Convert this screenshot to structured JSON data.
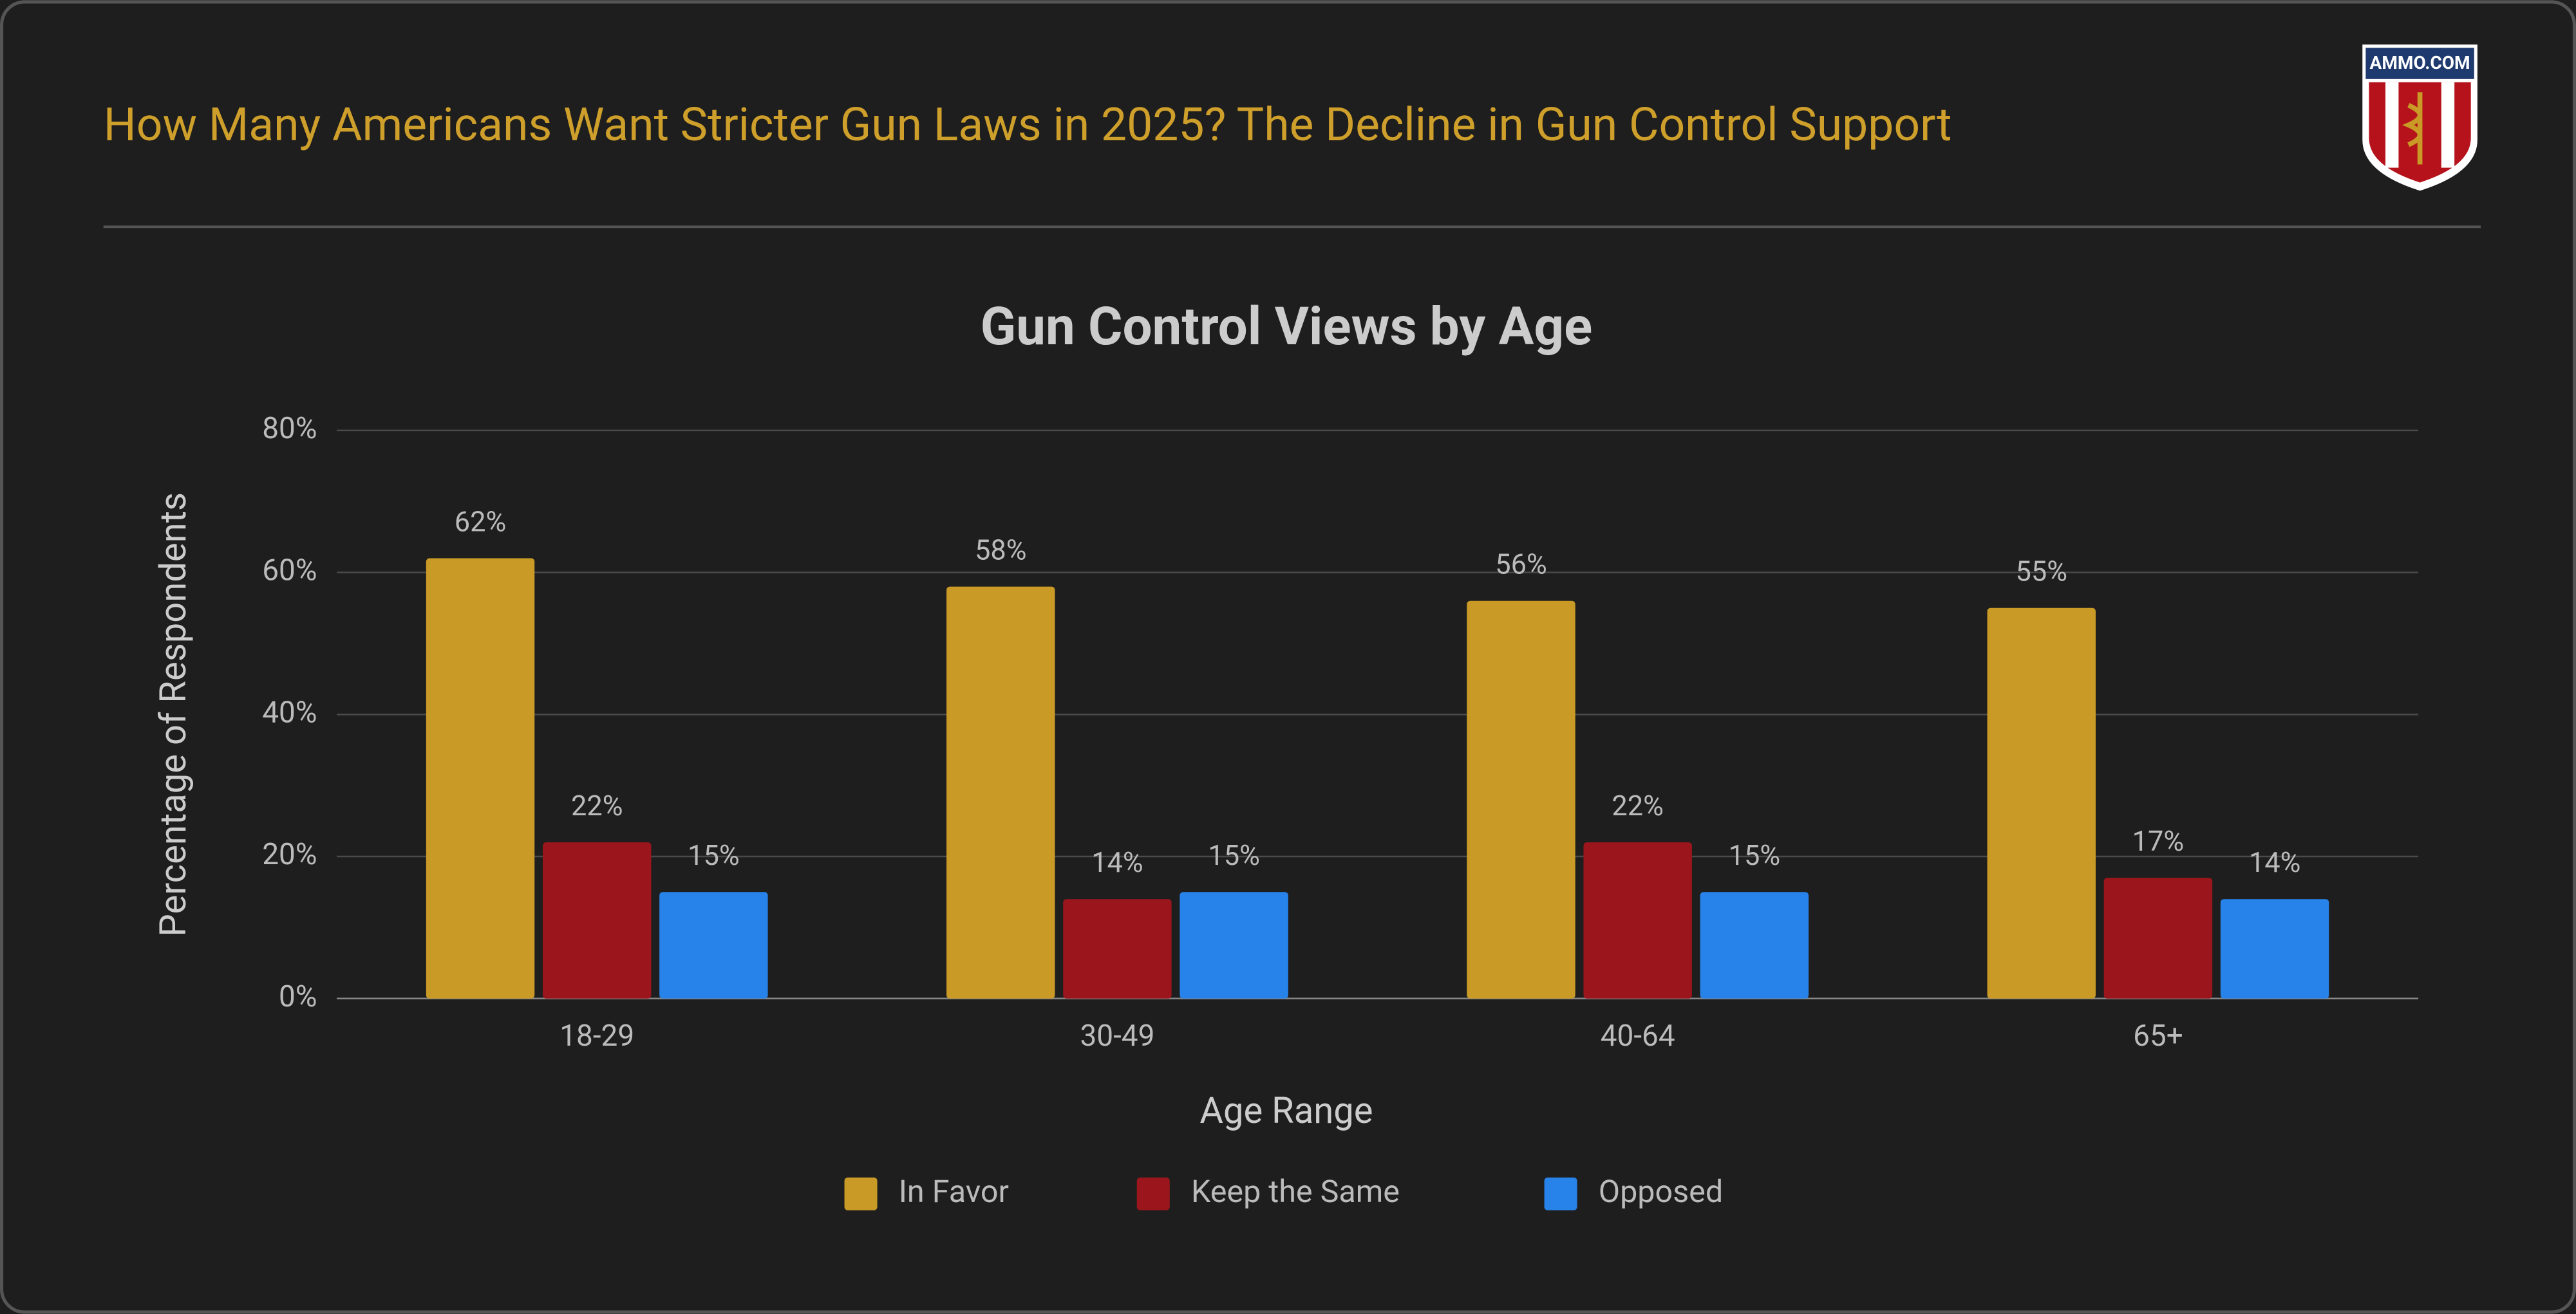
{
  "header": {
    "title": "How Many Americans Want Stricter Gun Laws in 2025? The Decline in Gun Control Support",
    "logo_text": "AMMO.COM"
  },
  "chart_data": {
    "type": "bar",
    "title": "Gun Control Views by Age",
    "x_label": "Age Range",
    "y_label": "Percentage of Respondents",
    "categories": [
      "18-29",
      "30-49",
      "40-64",
      "65+"
    ],
    "series": [
      {
        "name": "In Favor",
        "color": "#c99a25",
        "values": [
          62,
          58,
          56,
          55
        ],
        "value_labels": [
          "62%",
          "58%",
          "56%",
          "55%"
        ]
      },
      {
        "name": "Keep the Same",
        "color": "#9b161c",
        "values": [
          22,
          14,
          22,
          17
        ],
        "value_labels": [
          "22%",
          "14%",
          "22%",
          "17%"
        ]
      },
      {
        "name": "Opposed",
        "color": "#2783e9",
        "values": [
          15,
          15,
          15,
          14
        ],
        "value_labels": [
          "15%",
          "15%",
          "15%",
          "14%"
        ]
      }
    ],
    "ylim": [
      0,
      80
    ],
    "yticks": [
      {
        "value": 0,
        "label": "0%"
      },
      {
        "value": 20,
        "label": "20%"
      },
      {
        "value": 40,
        "label": "40%"
      },
      {
        "value": 60,
        "label": "60%"
      },
      {
        "value": 80,
        "label": "80%"
      }
    ],
    "grid": true,
    "legend": "bottom"
  }
}
